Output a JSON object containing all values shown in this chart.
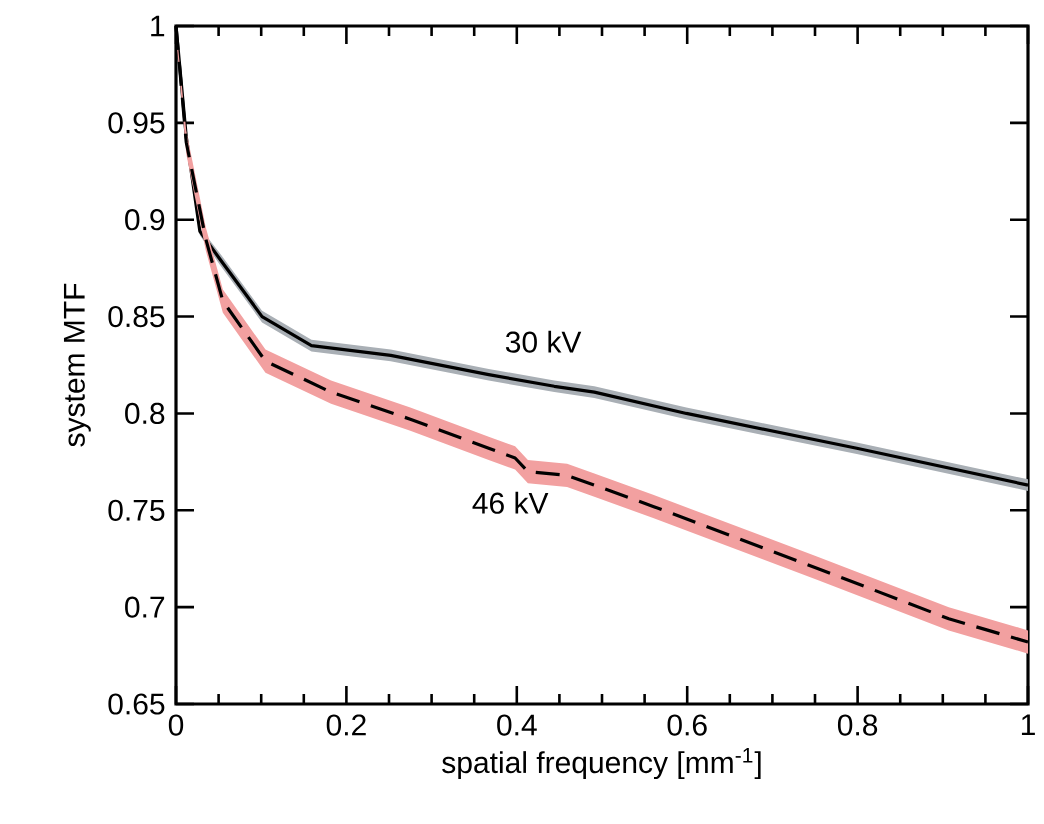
{
  "chart_data": {
    "type": "line",
    "xlabel": "spatial frequency [mm$^{-1}$]",
    "ylabel": "system MTF",
    "xlim": [
      0,
      1
    ],
    "ylim": [
      0.65,
      1
    ],
    "xticks": [
      0,
      0.2,
      0.4,
      0.6,
      0.8,
      1
    ],
    "yticks": [
      0.65,
      0.7,
      0.75,
      0.8,
      0.85,
      0.9,
      0.95,
      1
    ],
    "grid": false,
    "marker": "none",
    "series": [
      {
        "name": "30 kV",
        "color": "#000000",
        "line_style": "solid",
        "x": [
          0,
          0.012,
          0.028,
          0.051,
          0.101,
          0.159,
          0.252,
          0.367,
          0.444,
          0.491,
          0.599,
          0.799,
          1.0
        ],
        "values": [
          1,
          0.943,
          0.894,
          0.88,
          0.85,
          0.835,
          0.83,
          0.82,
          0.814,
          0.811,
          0.8,
          0.782,
          0.763
        ],
        "lower": [
          0.998,
          0.941,
          0.892,
          0.877,
          0.847,
          0.832,
          0.827,
          0.817,
          0.811,
          0.808,
          0.797,
          0.779,
          0.76
        ],
        "upper": [
          1,
          0.945,
          0.896,
          0.883,
          0.853,
          0.838,
          0.833,
          0.823,
          0.817,
          0.814,
          0.803,
          0.785,
          0.766
        ]
      },
      {
        "name": "46 kV",
        "color": "#000000",
        "line_style": "dashed",
        "x": [
          0,
          0.012,
          0.035,
          0.055,
          0.105,
          0.182,
          0.275,
          0.367,
          0.398,
          0.413,
          0.459,
          0.491,
          0.56,
          0.753,
          0.907,
          1.0
        ],
        "values": [
          1,
          0.94,
          0.89,
          0.858,
          0.827,
          0.811,
          0.797,
          0.782,
          0.777,
          0.77,
          0.768,
          0.763,
          0.752,
          0.72,
          0.694,
          0.682
        ],
        "lower": [
          0.995,
          0.934,
          0.884,
          0.852,
          0.821,
          0.805,
          0.791,
          0.776,
          0.771,
          0.764,
          0.762,
          0.757,
          0.746,
          0.714,
          0.688,
          0.676
        ],
        "upper": [
          1,
          0.946,
          0.896,
          0.864,
          0.833,
          0.817,
          0.803,
          0.788,
          0.783,
          0.776,
          0.774,
          0.769,
          0.758,
          0.726,
          0.7,
          0.688
        ]
      }
    ]
  }
}
